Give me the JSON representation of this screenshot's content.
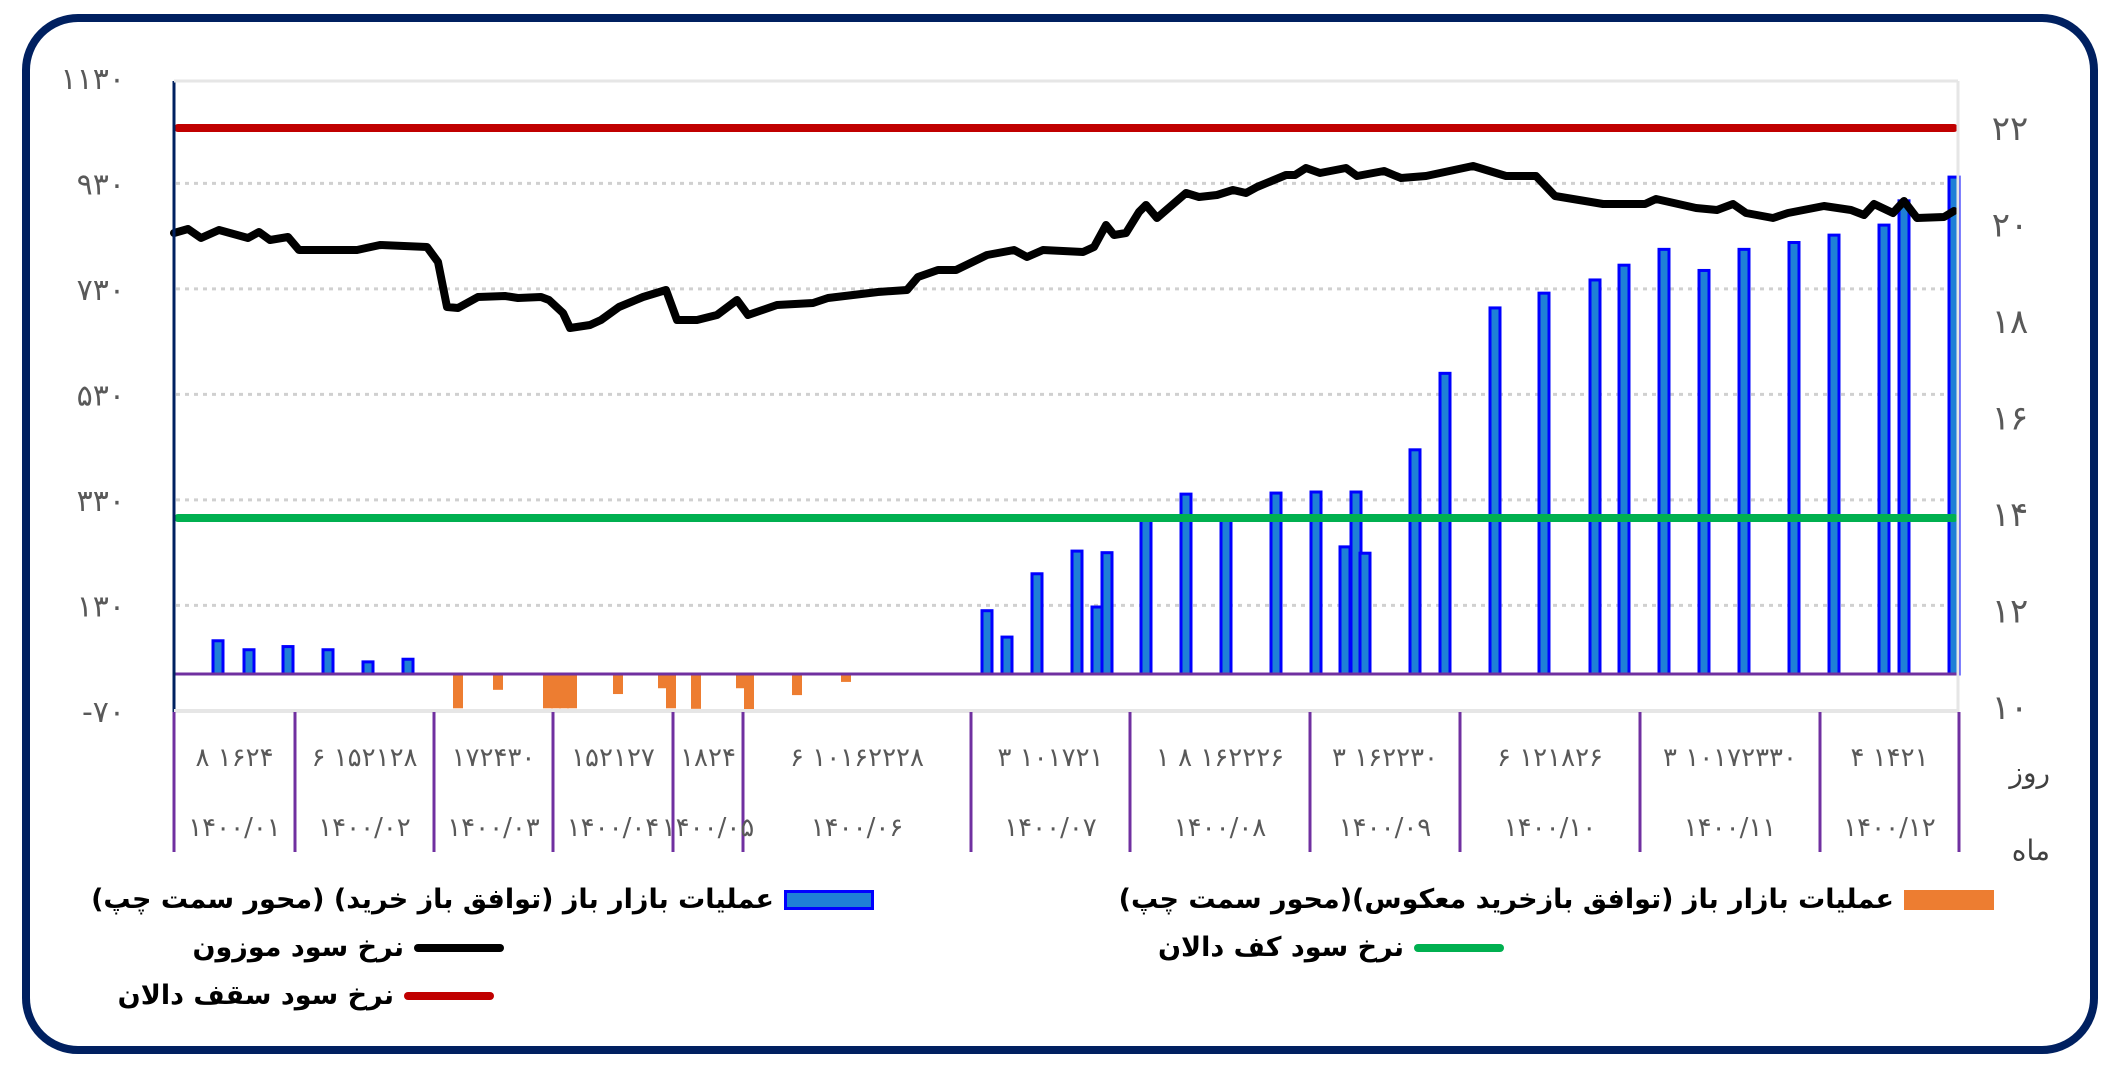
{
  "chart_data": {
    "type": "bar+line",
    "title": "",
    "left_axis": {
      "ticks": [
        "۱۱۳۰",
        "۹۳۰",
        "۷۳۰",
        "۵۳۰",
        "۳۳۰",
        "۱۳۰",
        "-۷۰"
      ],
      "values": [
        1130,
        930,
        730,
        530,
        330,
        130,
        -70
      ],
      "range": [
        -70,
        1130
      ]
    },
    "right_axis": {
      "ticks": [
        "۲۲",
        "۲۰",
        "۱۸",
        "۱۶",
        "۱۴",
        "۱۲",
        "۱۰"
      ],
      "values": [
        22,
        20,
        18,
        16,
        14,
        12,
        10
      ],
      "range": [
        10,
        22
      ]
    },
    "x_axis": {
      "day_row_label": "روز",
      "month_row_label": "ماه",
      "months": [
        {
          "label": "۱۴۰۰/۰۱",
          "days": "۸ ۱۶۲۴"
        },
        {
          "label": "۱۴۰۰/۰۲",
          "days": "۶ ۱۵۲۱۲۸"
        },
        {
          "label": "۱۴۰۰/۰۳",
          "days": "۱۷۲۴۳۰"
        },
        {
          "label": "۱۴۰۰/۰۴",
          "days": "۱۵۲۱۲۷"
        },
        {
          "label": "۱۴۰۰/۰۵",
          "days": "۱۸۲۴"
        },
        {
          "label": "۱۴۰۰/۰۶",
          "days": "۶ ۱۰۱۶۲۲۲۸"
        },
        {
          "label": "۱۴۰۰/۰۷",
          "days": "۳ ۱۰۱۷۲۱"
        },
        {
          "label": "۱۴۰۰/۰۸",
          "days": "۱ ۸ ۱۶۲۲۲۶"
        },
        {
          "label": "۱۴۰۰/۰۹",
          "days": "۳ ۱۶۲۲۳۰"
        },
        {
          "label": "۱۴۰۰/۱۰",
          "days": "۶ ۱۲۱۸۲۶"
        },
        {
          "label": "۱۴۰۰/۱۱",
          "days": "۳ ۱۰۱۷۲۳۳۰"
        },
        {
          "label": "۱۴۰۰/۱۲",
          "days": "۴ ۱۴۲۱"
        }
      ]
    },
    "series": [
      {
        "name": "عملیات بازار باز (توافق باز خرید) (محور سمت چپ)",
        "type": "bar",
        "axis": "left",
        "color": "#1F7FD6",
        "stroke": "#0000FF",
        "values": [
          63,
          46,
          52,
          46,
          23,
          28,
          120,
          70,
          190,
          233,
          127,
          230,
          300,
          341,
          300,
          343,
          345,
          241,
          345,
          229,
          425,
          570,
          694,
          722,
          747,
          775,
          805,
          765,
          805,
          818,
          832,
          851,
          897,
          942
        ]
      },
      {
        "name": "عملیات بازار باز (توافق بازخرید معکوس)(محور سمت چپ)",
        "type": "bar",
        "axis": "left",
        "color": "#ED7D31",
        "values": [
          -65,
          -30,
          -65,
          -65,
          -65,
          -65,
          -38,
          -27,
          -65,
          -66,
          -27,
          -68,
          -40,
          -15
        ]
      },
      {
        "name": "نرخ سود موزون",
        "type": "line",
        "axis": "right",
        "color": "#000000",
        "values": [
          20.0,
          20.1,
          19.9,
          20.0,
          19.9,
          19.6,
          19.6,
          19.6,
          18.6,
          18.8,
          18.8,
          17.9,
          18.2,
          18.4,
          18.2,
          18.3,
          18.6,
          18.1,
          18.3,
          18.4,
          18.4,
          18.9,
          19.4,
          19.6,
          19.6,
          20.4,
          20.2,
          20.8,
          21.0,
          20.9,
          21.1,
          21.0,
          20.9,
          20.9,
          20.6,
          20.5,
          20.4,
          20.4,
          20.4,
          20.3,
          20.2,
          20.3,
          20.2,
          20.2,
          20.2
        ]
      },
      {
        "name": "نرخ سود کف دالان",
        "type": "line",
        "axis": "right",
        "color": "#00B050",
        "values": [
          14
        ]
      },
      {
        "name": "نرخ سود سقف دالان",
        "type": "line",
        "axis": "right",
        "color": "#C00000",
        "values": [
          22
        ]
      }
    ],
    "legend_position": "bottom",
    "grid": true
  },
  "legend": {
    "repo": "عملیات بازار باز (توافق باز خرید) (محور سمت چپ)",
    "reverse_repo": "عملیات بازار باز (توافق بازخرید معکوس)(محور سمت چپ)",
    "weighted_rate": "نرخ سود  موزون",
    "floor_rate": "نرخ سود کف دالان",
    "ceiling_rate": "نرخ سود سقف دالان"
  },
  "colors": {
    "frame": "#002060",
    "repo_fill": "#1F7FD6",
    "repo_stroke": "#0000FF",
    "reverse_repo": "#ED7D31",
    "weighted": "#000000",
    "floor": "#00B050",
    "ceiling": "#C00000",
    "divider": "#7030A0"
  }
}
